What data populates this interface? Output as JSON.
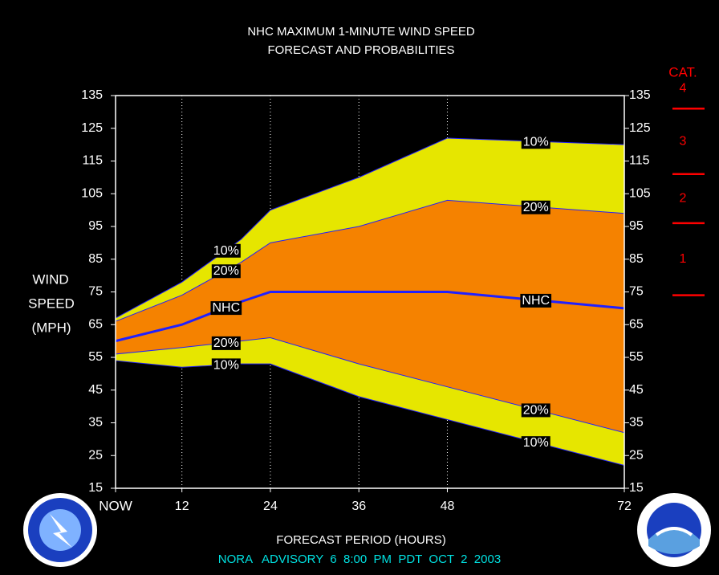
{
  "chart_data": {
    "type": "band",
    "title": "NHC MAXIMUM 1-MINUTE WIND SPEED",
    "subtitle": "FORECAST AND PROBABILITIES",
    "ylabel": [
      "WIND",
      "SPEED",
      "(MPH)"
    ],
    "xlabel": "FORECAST PERIOD (HOURS)",
    "footer": "NORA   ADVISORY  6  8:00  PM  PDT  OCT  2  2003",
    "x": [
      3,
      12,
      20,
      24,
      36,
      48,
      72
    ],
    "xlim": [
      3,
      72
    ],
    "xticks": [
      {
        "value": 3,
        "label": "NOW"
      },
      12,
      24,
      36,
      48,
      72
    ],
    "ylim": [
      15,
      135
    ],
    "yticks": [
      15,
      25,
      35,
      45,
      55,
      65,
      75,
      85,
      95,
      105,
      115,
      125,
      135
    ],
    "y2lim": [
      15,
      135
    ],
    "y2ticks": [
      15,
      25,
      35,
      45,
      55,
      65,
      75,
      85,
      95,
      105,
      115,
      125,
      135
    ],
    "grid": true,
    "bands": [
      {
        "name": "10%",
        "color": "#e6e600",
        "label_x": [
          18,
          60
        ],
        "upper": [
          67,
          78,
          91,
          100,
          110,
          122,
          120
        ],
        "lower": [
          54,
          52,
          53,
          53,
          43,
          36,
          22
        ]
      },
      {
        "name": "20%",
        "color": "#f58200",
        "label_x": [
          18,
          60
        ],
        "upper": [
          66,
          74,
          84,
          90,
          95,
          103,
          99
        ],
        "lower": [
          56,
          58,
          60,
          61,
          53,
          46,
          32
        ]
      }
    ],
    "series": [
      {
        "name": "NHC",
        "color": "#2020ff",
        "label_x": [
          18,
          60
        ],
        "values": [
          60,
          65,
          72,
          75,
          75,
          75,
          70
        ]
      }
    ],
    "category_scale": {
      "title": "CAT.",
      "color": "#ff0000",
      "thresholds": [
        74,
        96,
        111,
        131
      ],
      "labels": [
        "1",
        "2",
        "3",
        "4"
      ]
    }
  }
}
